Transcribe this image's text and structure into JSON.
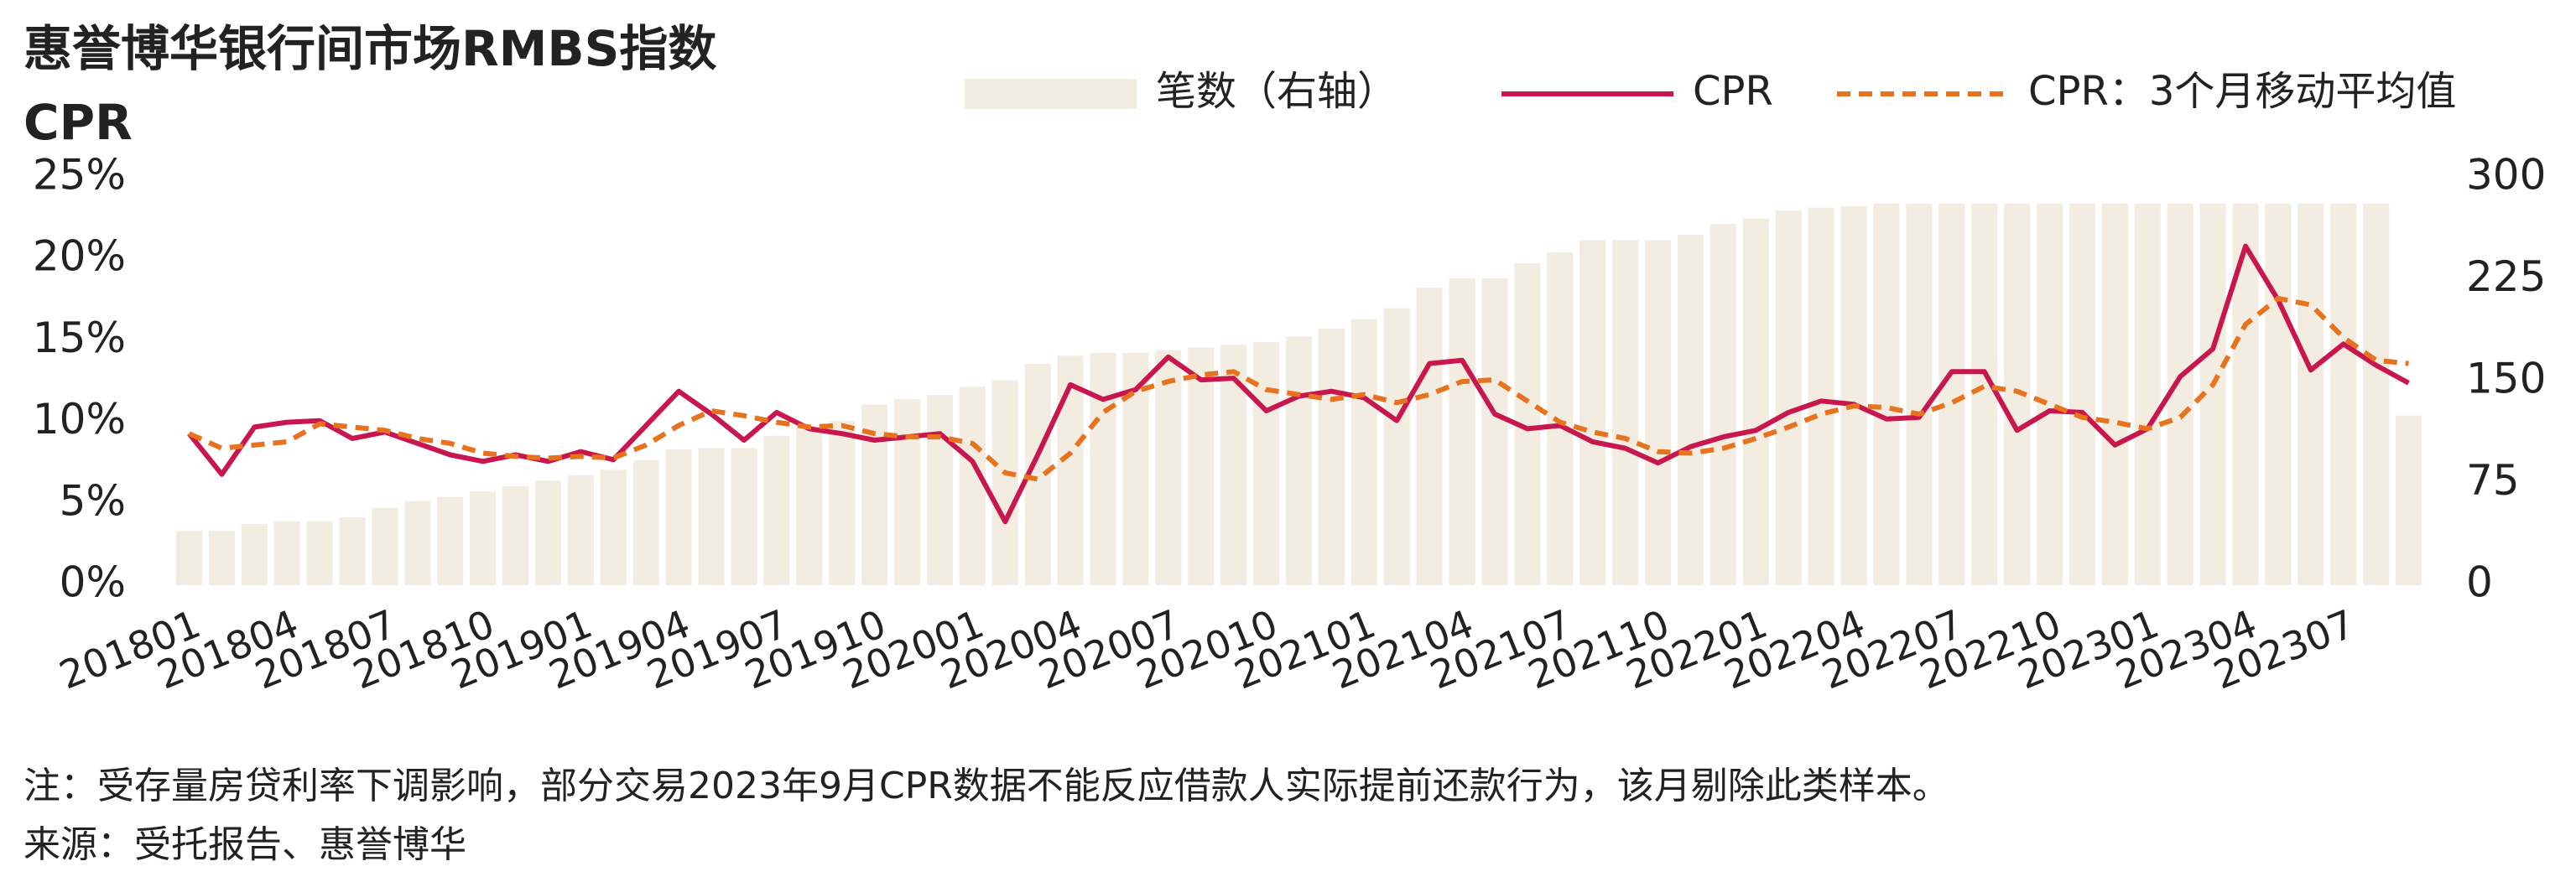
{
  "chart_data": {
    "type": "bar",
    "title": "惠誉博华银行间市场RMBS指数",
    "subtitle": "CPR",
    "note": "注：受存量房贷利率下调影响，部分交易2023年9月CPR数据不能反应借款人实际提前还款行为，该月剔除此类样本。",
    "source": "来源：受托报告、惠誉博华",
    "categories": [
      "201801",
      null,
      null,
      "201804",
      null,
      null,
      "201807",
      null,
      null,
      "201810",
      null,
      null,
      "201901",
      null,
      null,
      "201904",
      null,
      null,
      "201907",
      null,
      null,
      "201910",
      null,
      null,
      "202001",
      null,
      null,
      "202004",
      null,
      null,
      "202007",
      null,
      null,
      "202010",
      null,
      null,
      "202101",
      null,
      null,
      "202104",
      null,
      null,
      "202107",
      null,
      null,
      "202110",
      null,
      null,
      "202201",
      null,
      null,
      "202204",
      null,
      null,
      "202207",
      null,
      null,
      "202210",
      null,
      null,
      "202301",
      null,
      null,
      "202304",
      null,
      null,
      "202307",
      null,
      null
    ],
    "series": [
      {
        "name": "笔数（右轴）",
        "type": "bar",
        "axis": "y2",
        "color": "#f3ece0",
        "values": [
          40,
          40,
          45,
          47,
          47,
          50,
          57,
          62,
          65,
          69,
          73,
          77,
          81,
          85,
          92,
          100,
          101,
          101,
          110,
          117,
          121,
          133,
          137,
          140,
          146,
          151,
          163,
          169,
          171,
          171,
          173,
          175,
          177,
          179,
          183,
          189,
          196,
          204,
          219,
          226,
          226,
          237,
          245,
          254,
          254,
          254,
          258,
          266,
          270,
          276,
          278,
          279,
          281,
          281,
          281,
          281,
          281,
          281,
          281,
          281,
          281,
          281,
          281,
          281,
          281,
          281,
          281,
          281,
          125
        ]
      },
      {
        "name": "CPR",
        "type": "line",
        "color": "#c8174f",
        "values": [
          9.3,
          6.8,
          9.7,
          10.0,
          10.1,
          9.0,
          9.4,
          8.7,
          8.0,
          7.6,
          8.0,
          7.6,
          8.2,
          7.7,
          9.8,
          11.9,
          10.5,
          8.9,
          10.6,
          9.6,
          9.3,
          8.9,
          9.1,
          9.3,
          7.6,
          3.9,
          8.0,
          12.3,
          11.4,
          12.0,
          14.0,
          12.6,
          12.7,
          10.7,
          11.6,
          11.9,
          11.5,
          10.1,
          13.6,
          13.8,
          10.5,
          9.6,
          9.8,
          8.8,
          8.4,
          7.5,
          8.5,
          9.1,
          9.5,
          10.6,
          11.3,
          11.1,
          10.2,
          10.3,
          13.1,
          13.1,
          9.5,
          10.7,
          10.6,
          8.6,
          9.6,
          12.8,
          14.5,
          20.8,
          17.5,
          13.2,
          14.8,
          13.5,
          12.4
        ]
      },
      {
        "name": "CPR：3个月移动平均值",
        "type": "line",
        "style": "dashed",
        "color": "#e8731f",
        "values": [
          9.3,
          8.4,
          8.6,
          8.8,
          9.9,
          9.7,
          9.5,
          9.0,
          8.7,
          8.1,
          7.9,
          7.8,
          7.9,
          7.8,
          8.6,
          9.8,
          10.7,
          10.4,
          10.0,
          9.7,
          9.8,
          9.3,
          9.1,
          9.1,
          8.7,
          6.9,
          6.5,
          8.1,
          10.6,
          11.9,
          12.5,
          12.9,
          13.1,
          12.0,
          11.7,
          11.4,
          11.7,
          11.2,
          11.7,
          12.5,
          12.6,
          11.3,
          10.0,
          9.4,
          9.0,
          8.2,
          8.1,
          8.4,
          9.0,
          9.7,
          10.5,
          11.0,
          10.9,
          10.5,
          11.2,
          12.2,
          11.9,
          11.1,
          10.3,
          10.0,
          9.6,
          10.3,
          12.3,
          16.0,
          17.6,
          17.2,
          15.2,
          13.8,
          13.6
        ]
      }
    ],
    "ylim": [
      0,
      25
    ],
    "yticks": [
      {
        "value": 0,
        "label": "0%"
      },
      {
        "value": 5,
        "label": "5%"
      },
      {
        "value": 10,
        "label": "10%"
      },
      {
        "value": 15,
        "label": "15%"
      },
      {
        "value": 20,
        "label": "20%"
      },
      {
        "value": 25,
        "label": "25%"
      }
    ],
    "y2lim": [
      0,
      300
    ],
    "y2ticks": [
      0,
      75,
      150,
      225,
      300
    ],
    "grid": false,
    "legend": "top"
  }
}
